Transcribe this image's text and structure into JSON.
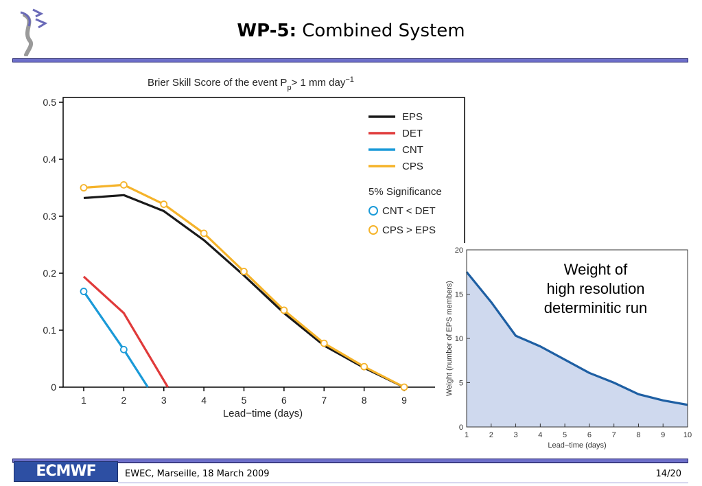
{
  "header": {
    "title_bold": "WP-5:",
    "title_rest": " Combined System"
  },
  "footer": {
    "logo_text": "ECMWF",
    "event": "EWEC, Marseille, 18 March 2009",
    "page": "14/20"
  },
  "chart_data": [
    {
      "type": "line",
      "title": "Brier Skill Score of the event P",
      "title_sub": "p",
      "title_tail": "> 1 mm day",
      "title_sup": "−1",
      "xlabel": "Lead−time (days)",
      "ylabel": "",
      "xlim": [
        0.5,
        10.2
      ],
      "ylim": [
        0,
        0.5
      ],
      "x_ticks": [
        1,
        2,
        3,
        4,
        5,
        6,
        7,
        8,
        9
      ],
      "y_ticks": [
        0,
        0.1,
        0.2,
        0.3,
        0.4,
        0.5
      ],
      "y_tick_labels": [
        "0",
        "0.1",
        "0.2",
        "0.3",
        "0.4",
        "0.5"
      ],
      "legend_placement": "top-right",
      "series": [
        {
          "name": "EPS",
          "color": "#1a1a1a",
          "x": [
            1,
            2,
            3,
            4,
            5,
            6,
            7,
            8,
            9
          ],
          "values": [
            0.332,
            0.337,
            0.309,
            0.258,
            0.196,
            0.13,
            0.073,
            0.034,
            0.0
          ]
        },
        {
          "name": "DET",
          "color": "#e03a3a",
          "x": [
            1,
            2,
            3.1
          ],
          "values": [
            0.194,
            0.13,
            0.0
          ]
        },
        {
          "name": "CNT",
          "color": "#1a9ad8",
          "x": [
            1,
            2,
            2.6
          ],
          "values": [
            0.168,
            0.066,
            0.0
          ]
        },
        {
          "name": "CPS",
          "color": "#f5b32a",
          "x": [
            1,
            2,
            3,
            4,
            5,
            6,
            7,
            8,
            9
          ],
          "values": [
            0.35,
            0.355,
            0.321,
            0.27,
            0.203,
            0.135,
            0.077,
            0.036,
            0.0
          ]
        }
      ],
      "significance": {
        "heading": "5% Significance",
        "cnt_label": "CNT < DET",
        "cps_label": "CPS > EPS",
        "cnt_color": "#1a9ad8",
        "cps_color": "#f5b32a",
        "cnt_points": [
          [
            1,
            0.168
          ],
          [
            2,
            0.066
          ]
        ],
        "cps_points": [
          [
            1,
            0.35
          ],
          [
            2,
            0.355
          ],
          [
            3,
            0.321
          ],
          [
            4,
            0.27
          ],
          [
            5,
            0.203
          ],
          [
            6,
            0.135
          ],
          [
            7,
            0.077
          ],
          [
            8,
            0.036
          ],
          [
            9,
            0.0
          ]
        ]
      }
    },
    {
      "type": "area",
      "title": "",
      "annotation": [
        "Weight of",
        "high resolution",
        "determinitic run"
      ],
      "xlabel": "Lead−time (days)",
      "ylabel": "Weight (number of EPS members)",
      "xlim": [
        1,
        10
      ],
      "ylim": [
        0,
        20
      ],
      "x_ticks": [
        1,
        2,
        3,
        4,
        5,
        6,
        7,
        8,
        9,
        10
      ],
      "y_ticks": [
        0,
        5,
        10,
        15,
        20
      ],
      "line_color": "#1e5fa3",
      "fill_color": "#cfd9ee",
      "x": [
        1,
        2,
        3,
        4,
        5,
        6,
        7,
        8,
        9,
        10
      ],
      "values": [
        17.5,
        14.1,
        10.3,
        9.1,
        7.6,
        6.1,
        5.0,
        3.7,
        3.0,
        2.5
      ]
    }
  ]
}
